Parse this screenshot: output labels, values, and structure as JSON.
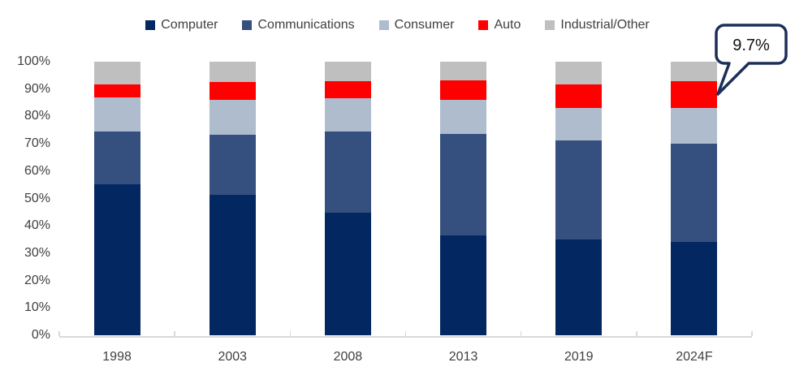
{
  "chart_data": {
    "type": "bar",
    "subtype": "stacked-100-percent",
    "title": "",
    "xlabel": "",
    "ylabel": "",
    "categories": [
      "1998",
      "2003",
      "2008",
      "2013",
      "2019",
      "2024F"
    ],
    "series": [
      {
        "name": "Computer",
        "color": "#032760",
        "values": [
          55.3,
          51.3,
          44.8,
          36.5,
          35.0,
          34.1
        ]
      },
      {
        "name": "Communications",
        "color": "#35507e",
        "values": [
          19.1,
          22.0,
          29.7,
          37.0,
          36.3,
          35.9
        ]
      },
      {
        "name": "Consumer",
        "color": "#aebcce",
        "values": [
          12.5,
          12.7,
          12.0,
          12.5,
          11.7,
          13.2
        ]
      },
      {
        "name": "Auto",
        "color": "#ff0000",
        "values": [
          4.8,
          6.5,
          6.5,
          7.2,
          8.8,
          9.7
        ]
      },
      {
        "name": "Industrial/Other",
        "color": "#bfbfbf",
        "values": [
          8.3,
          7.5,
          7.0,
          6.8,
          8.2,
          7.1
        ]
      }
    ],
    "ylim": [
      0,
      100
    ],
    "yticks": [
      "100%",
      "90%",
      "80%",
      "70%",
      "60%",
      "50%",
      "40%",
      "30%",
      "20%",
      "10%",
      "0%"
    ],
    "grid": false,
    "legend_position": "top",
    "annotation": {
      "text": "9.7%",
      "target_category": "2024F",
      "target_series": "Auto"
    }
  },
  "colors": {
    "axis": "#d9d9d9",
    "text": "#404040",
    "callout_border": "#1c2f58",
    "callout_fill": "#ffffff",
    "background": "#ffffff"
  }
}
